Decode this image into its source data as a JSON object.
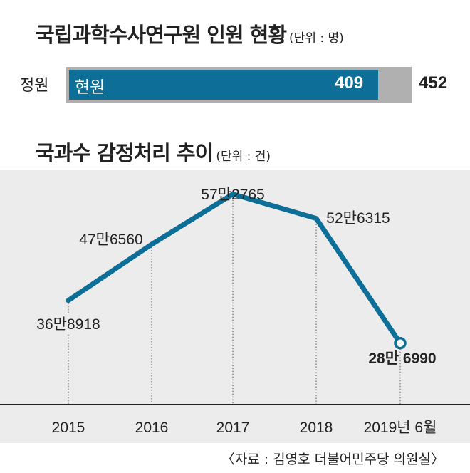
{
  "staff": {
    "title": "국립과학수사연구원 인원 현황",
    "unit": "(단위 : 명)",
    "row_label": "정원",
    "current_label": "현원",
    "current_value": 409,
    "total_value": 452
  },
  "chart_data": {
    "type": "line",
    "title": "국과수 감정처리 추이",
    "unit": "(단위 : 건)",
    "x": [
      "2015",
      "2016",
      "2017",
      "2018",
      "2019년 6월"
    ],
    "values": [
      368918,
      476560,
      572765,
      526315,
      286990
    ],
    "value_labels": [
      "36만8918",
      "47만6560",
      "57만2765",
      "52만6315",
      "28만 6990"
    ],
    "ylim": [
      180000,
      620000
    ],
    "color": "#0d6f97"
  },
  "source": "〈자료 : 김영호 더불어민주당 의원실〉"
}
